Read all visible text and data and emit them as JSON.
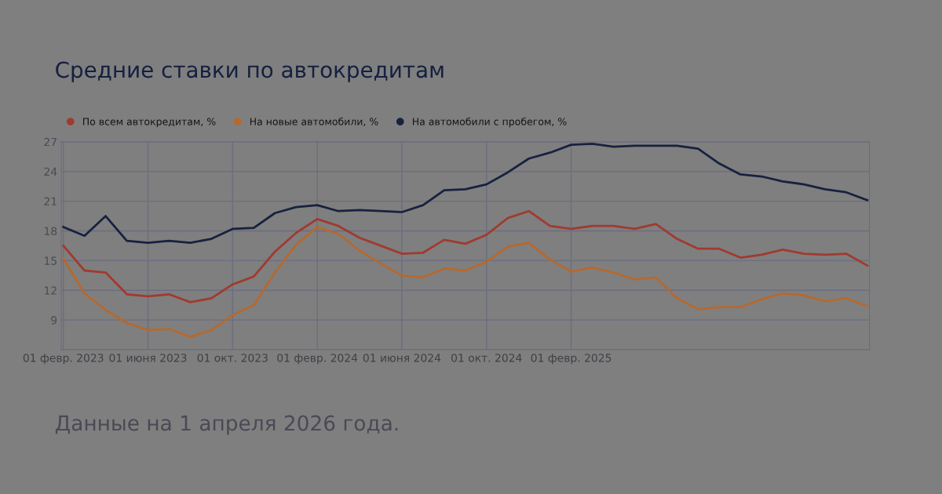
{
  "chart_data": {
    "type": "line",
    "title": "Средние ставки по автокредитам",
    "annotations": [
      "Данные на 1 апреля 2026 года."
    ],
    "categories": [
      "01 февр. 2023",
      null,
      null,
      null,
      "01 июня 2023",
      null,
      null,
      null,
      "01 окт. 2023",
      null,
      null,
      null,
      "01 февр. 2024",
      null,
      null,
      null,
      "01 июня 2024",
      null,
      null,
      null,
      "01 окт. 2024",
      null,
      null,
      null,
      "01 февр. 2025",
      null,
      null,
      null,
      null,
      null,
      null,
      null,
      null,
      null,
      null,
      null,
      null,
      null,
      null
    ],
    "series": [
      {
        "name": "По всем автокредитам, %",
        "color": "#a13a30",
        "values": [
          16.5,
          14.0,
          13.8,
          11.6,
          11.4,
          11.6,
          10.8,
          11.2,
          12.6,
          13.4,
          15.9,
          17.8,
          19.2,
          18.5,
          17.3,
          16.5,
          15.7,
          15.8,
          17.1,
          16.7,
          17.6,
          19.3,
          20.0,
          18.5,
          18.2,
          18.5,
          18.5,
          18.2,
          18.7,
          17.2,
          16.2,
          16.2,
          15.3,
          15.6,
          16.1,
          15.7,
          15.6,
          15.7,
          14.5
        ]
      },
      {
        "name": "На новые автомобили, %",
        "color": "#b5692f",
        "values": [
          15.2,
          11.7,
          10.0,
          8.7,
          8.0,
          8.1,
          7.3,
          8.0,
          9.5,
          10.5,
          13.8,
          16.6,
          18.4,
          17.7,
          16.0,
          14.7,
          13.5,
          13.3,
          14.2,
          14.0,
          14.9,
          16.4,
          16.8,
          15.1,
          13.9,
          14.3,
          13.8,
          13.1,
          13.3,
          11.2,
          10.1,
          10.3,
          10.3,
          11.1,
          11.7,
          11.5,
          10.9,
          11.2,
          10.4
        ]
      },
      {
        "name": "На автомобили с пробегом, %",
        "color": "#17223f",
        "values": [
          18.4,
          17.5,
          19.5,
          17.0,
          16.8,
          17.0,
          16.8,
          17.2,
          18.2,
          18.3,
          19.8,
          20.4,
          20.6,
          20.0,
          20.1,
          20.0,
          19.9,
          20.6,
          22.1,
          22.2,
          22.7,
          23.9,
          25.3,
          25.9,
          26.7,
          26.8,
          26.5,
          26.6,
          26.6,
          26.6,
          26.3,
          24.8,
          23.7,
          23.5,
          23.0,
          22.7,
          22.2,
          21.9,
          21.1
        ]
      }
    ],
    "ylim": [
      6,
      27
    ],
    "yticks": [
      {
        "value": 6,
        "label": null
      },
      9,
      12,
      15,
      18,
      21,
      24,
      27
    ],
    "grid": true,
    "legend": "top left",
    "marker": "none",
    "line_style": "solid"
  }
}
